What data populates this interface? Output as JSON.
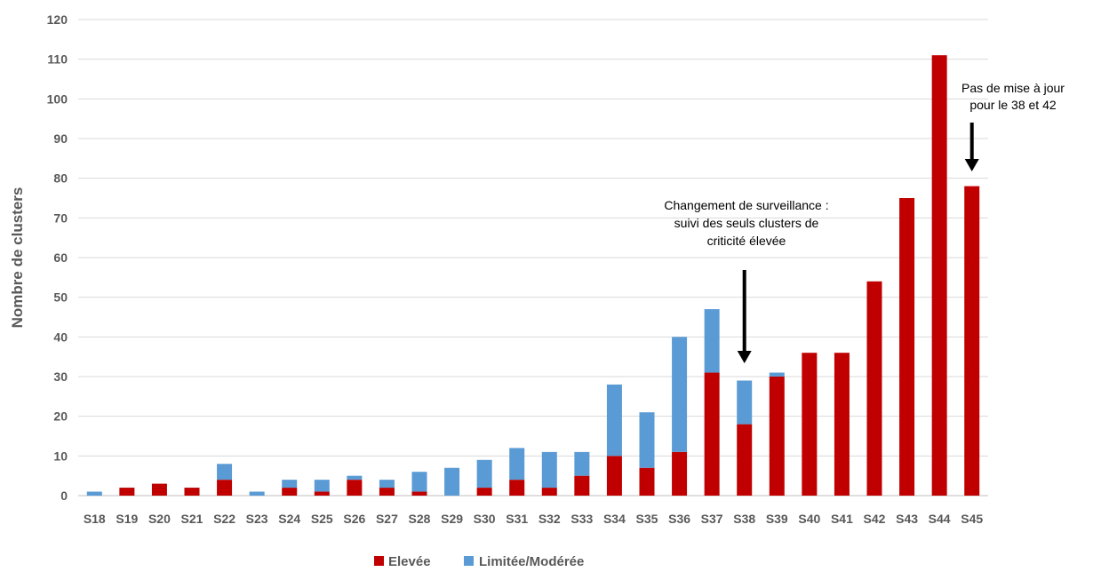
{
  "chart_data": {
    "type": "bar",
    "stacked": true,
    "ylabel": "Nombre de clusters",
    "ylim": [
      0,
      120
    ],
    "yticks": [
      0,
      10,
      20,
      30,
      40,
      50,
      60,
      70,
      80,
      90,
      100,
      110,
      120
    ],
    "grid": true,
    "legend_position": "bottom",
    "categories": [
      "S18",
      "S19",
      "S20",
      "S21",
      "S22",
      "S23",
      "S24",
      "S25",
      "S26",
      "S27",
      "S28",
      "S29",
      "S30",
      "S31",
      "S32",
      "S33",
      "S34",
      "S35",
      "S36",
      "S37",
      "S38",
      "S39",
      "S40",
      "S41",
      "S42",
      "S43",
      "S44",
      "S45"
    ],
    "series": [
      {
        "name": "Elevée",
        "color": "#C00000",
        "values": [
          0,
          2,
          3,
          2,
          4,
          0,
          2,
          1,
          4,
          2,
          1,
          0,
          2,
          4,
          2,
          5,
          10,
          7,
          11,
          31,
          18,
          30,
          36,
          36,
          54,
          75,
          111,
          78
        ]
      },
      {
        "name": "Limitée/Modérée",
        "color": "#5B9BD5",
        "values": [
          1,
          0,
          0,
          0,
          4,
          1,
          2,
          3,
          1,
          2,
          5,
          7,
          7,
          8,
          9,
          6,
          18,
          14,
          29,
          16,
          11,
          1,
          0,
          0,
          0,
          0,
          0,
          0
        ]
      }
    ],
    "annotations": [
      {
        "lines": [
          "Changement de surveillance :",
          "suivi des seuls clusters de",
          "criticité élevée"
        ],
        "category": "S38"
      },
      {
        "lines": [
          "Pas de mise à jour",
          "pour le 38 et 42"
        ],
        "category": "S45"
      }
    ]
  }
}
